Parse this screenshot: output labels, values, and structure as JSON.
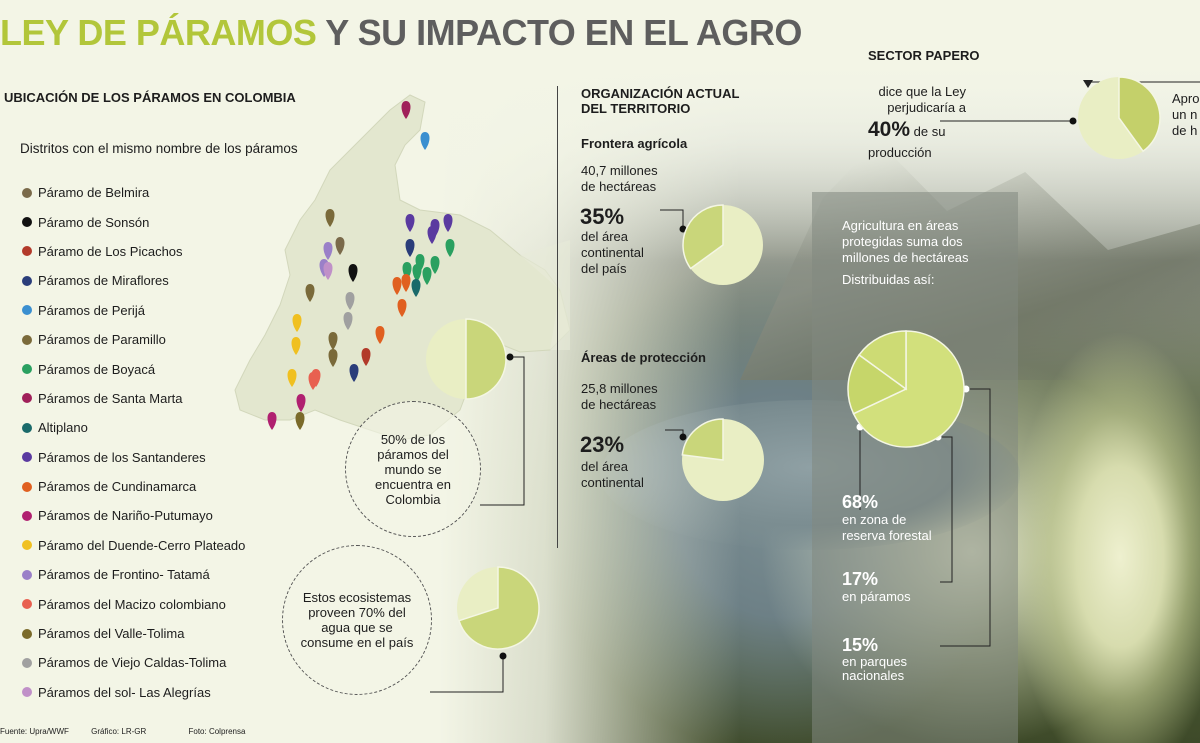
{
  "title": {
    "part1": "LEY DE PÁRAMOS",
    "part2": "Y SU IMPACTO EN EL AGRO"
  },
  "map_section": {
    "heading": "UBICACIÓN DE LOS PÁRAMOS EN COLOMBIA",
    "subheading": "Distritos con el mismo nombre de los páramos",
    "legend": [
      {
        "label": "Páramo de Belmira",
        "color": "#7a6a4a"
      },
      {
        "label": "Páramo de Sonsón",
        "color": "#111111"
      },
      {
        "label": "Páramo de Los Picachos",
        "color": "#b23a2a"
      },
      {
        "label": "Páramos de Miraflores",
        "color": "#2a3d7a"
      },
      {
        "label": "Páramos de Perijá",
        "color": "#3a8fd0"
      },
      {
        "label": "Páramos de Paramillo",
        "color": "#7a6a3a"
      },
      {
        "label": "Páramos de Boyacá",
        "color": "#2aa060"
      },
      {
        "label": "Páramos de Santa Marta",
        "color": "#a0205a"
      },
      {
        "label": "Altiplano",
        "color": "#1a6a6a"
      },
      {
        "label": "Páramos de los Santanderes",
        "color": "#5a3aa0"
      },
      {
        "label": "Páramos de Cundinamarca",
        "color": "#e06020"
      },
      {
        "label": "Páramos de Nariño-Putumayo",
        "color": "#b02070"
      },
      {
        "label": "Páramo del Duende-Cerro Plateado",
        "color": "#f0c020"
      },
      {
        "label": "Páramos de Frontino- Tatamá",
        "color": "#9a80c8"
      },
      {
        "label": "Páramos del Macizo colombiano",
        "color": "#e86050"
      },
      {
        "label": "Páramos del Valle-Tolima",
        "color": "#7a6a2a"
      },
      {
        "label": "Páramos de Viejo Caldas-Tolima",
        "color": "#a0a0a0"
      },
      {
        "label": "Páramos del sol- Las Alegrías",
        "color": "#c090c8"
      }
    ],
    "bubble_world": "50% de los páramos del mundo se encuentra en Colombia",
    "bubble_water": "Estos ecosistemas proveen 70% del agua que se consume en el país",
    "pie_world_pct": 50,
    "pie_water_pct": 70
  },
  "territory": {
    "heading_line1": "ORGANIZACIÓN ACTUAL",
    "heading_line2": "DEL TERRITORIO",
    "frontier_label": "Frontera agrícola",
    "frontier_amount_line1": "40,7 millones",
    "frontier_amount_line2": "de hectáreas",
    "frontier_pct": "35%",
    "frontier_desc_line1": "del área",
    "frontier_desc_line2": "continental",
    "frontier_desc_line3": "del país",
    "frontier_pct_value": 35,
    "protection_label": "Áreas de protección",
    "protection_amount_line1": "25,8 millones",
    "protection_amount_line2": "de hectáreas",
    "protection_pct": "23%",
    "protection_desc_line1": "del área",
    "protection_desc_line2": "continental",
    "protection_pct_value": 23
  },
  "potato": {
    "heading": "SECTOR PAPERO",
    "line1": "dice que la Ley",
    "line2": "perjudicaría a",
    "pct": "40%",
    "pct_suffix": " de su",
    "line4": "producción",
    "pct_value": 40,
    "cut_line1": "Apro",
    "cut_line2": "un n",
    "cut_line3": "de h"
  },
  "protected": {
    "intro_line1": "Agricultura en áreas",
    "intro_line2": "protegidas suma dos",
    "intro_line3": "millones de hectáreas",
    "distributed": "Distribuidas así:",
    "items": [
      {
        "pct": "68%",
        "line1": "en zona de",
        "line2": "reserva forestal",
        "value": 68
      },
      {
        "pct": "17%",
        "line1": "en páramos",
        "line2": "",
        "value": 17
      },
      {
        "pct": "15%",
        "line1": "en parques",
        "line2": "nacionales",
        "value": 15
      }
    ]
  },
  "footer": {
    "source": "Fuente: Upra/WWF",
    "graphic": "Gráfico: LR-GR",
    "photo": "Foto: Colprensa"
  }
}
